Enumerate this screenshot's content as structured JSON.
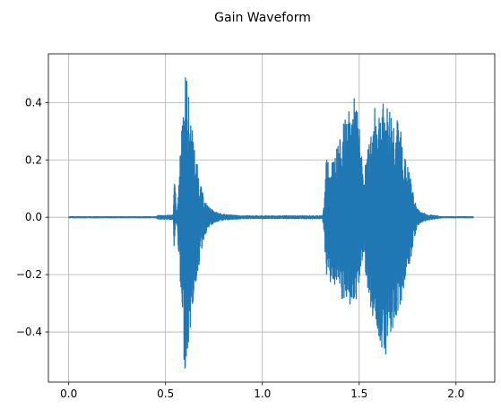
{
  "chart_data": {
    "type": "line",
    "title": "Gain Waveform",
    "xlabel": "",
    "ylabel": "",
    "xlim": [
      -0.105,
      2.2
    ],
    "ylim": [
      -0.575,
      0.57
    ],
    "xticks": [
      0.0,
      0.5,
      1.0,
      1.5,
      2.0
    ],
    "xtick_labels": [
      "0.0",
      "0.5",
      "1.0",
      "1.5",
      "2.0"
    ],
    "yticks": [
      -0.4,
      -0.2,
      0.0,
      0.2,
      0.4
    ],
    "ytick_labels": [
      "−0.4",
      "−0.2",
      "0.0",
      "0.2",
      "0.4"
    ],
    "grid": true,
    "series": [
      {
        "color": "#1f77b4",
        "envelope": {
          "t": [
            0.0,
            0.45,
            0.46,
            0.53,
            0.54,
            0.545,
            0.55,
            0.555,
            0.56,
            0.57,
            0.58,
            0.59,
            0.6,
            0.61,
            0.62,
            0.64,
            0.66,
            0.68,
            0.7,
            0.72,
            0.75,
            0.8,
            0.9,
            1.0,
            1.2,
            1.31,
            1.32,
            1.33,
            1.35,
            1.38,
            1.4,
            1.42,
            1.44,
            1.46,
            1.48,
            1.5,
            1.52,
            1.54,
            1.56,
            1.58,
            1.6,
            1.62,
            1.64,
            1.66,
            1.68,
            1.7,
            1.72,
            1.74,
            1.76,
            1.78,
            1.8,
            1.82,
            1.85,
            1.9,
            1.93,
            1.95,
            2.09
          ],
          "upper": [
            0.002,
            0.002,
            0.006,
            0.008,
            0.01,
            0.13,
            0.12,
            0.02,
            0.03,
            0.12,
            0.3,
            0.45,
            0.52,
            0.5,
            0.42,
            0.3,
            0.2,
            0.12,
            0.06,
            0.04,
            0.02,
            0.01,
            0.005,
            0.005,
            0.005,
            0.005,
            0.06,
            0.22,
            0.2,
            0.24,
            0.27,
            0.33,
            0.36,
            0.39,
            0.43,
            0.33,
            0.15,
            0.22,
            0.3,
            0.38,
            0.39,
            0.4,
            0.39,
            0.39,
            0.36,
            0.34,
            0.3,
            0.2,
            0.16,
            0.08,
            0.03,
            0.02,
            0.01,
            0.005,
            0.002,
            0.002,
            0.002
          ],
          "lower": [
            -0.002,
            -0.002,
            -0.006,
            -0.008,
            -0.01,
            -0.14,
            -0.05,
            -0.02,
            -0.05,
            -0.15,
            -0.33,
            -0.48,
            -0.53,
            -0.52,
            -0.45,
            -0.32,
            -0.22,
            -0.14,
            -0.07,
            -0.04,
            -0.02,
            -0.01,
            -0.005,
            -0.005,
            -0.005,
            -0.005,
            -0.07,
            -0.2,
            -0.23,
            -0.25,
            -0.29,
            -0.31,
            -0.32,
            -0.32,
            -0.3,
            -0.25,
            -0.12,
            -0.23,
            -0.32,
            -0.38,
            -0.42,
            -0.46,
            -0.48,
            -0.43,
            -0.37,
            -0.33,
            -0.3,
            -0.2,
            -0.18,
            -0.09,
            -0.03,
            -0.02,
            -0.01,
            -0.005,
            -0.002,
            -0.002,
            -0.002
          ]
        }
      }
    ]
  }
}
